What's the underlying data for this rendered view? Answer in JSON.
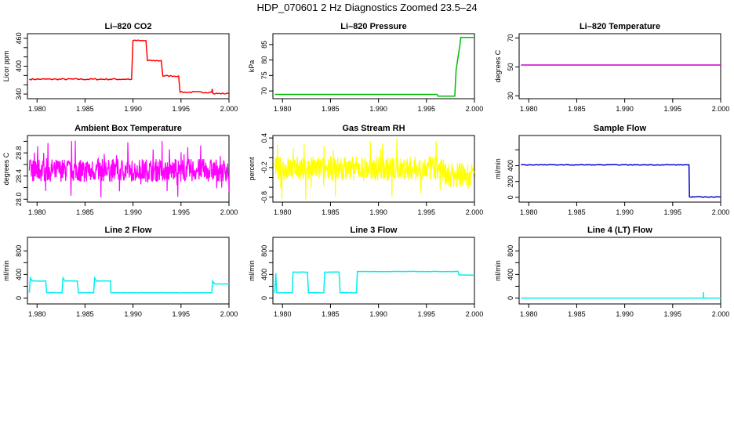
{
  "page": {
    "title": "HDP_070601  2 Hz Diagnostics Zoomed 23.5–24"
  },
  "chart_data": [
    {
      "type": "line",
      "title": "Li–820 CO2",
      "ylabel": "Licor ppm",
      "xlim": [
        1.979,
        2.0
      ],
      "ylim": [
        330,
        470
      ],
      "xticks": [
        1.98,
        1.985,
        1.99,
        1.995,
        2.0
      ],
      "xticklabels": [
        "1.980",
        "1.985",
        "1.990",
        "1.995",
        "2.000"
      ],
      "yticks": [
        340,
        360,
        380,
        400,
        420,
        440,
        460
      ],
      "yticklabels": [
        "340",
        "",
        "",
        "400",
        "",
        "",
        "460"
      ],
      "color": "#ff0000",
      "noise": 1.5,
      "series": [
        {
          "x": [
            1.9792,
            1.98985,
            1.99,
            1.99135,
            1.9915,
            1.99295,
            1.9931,
            1.99475,
            1.9949,
            1.9982,
            1.99825,
            1.9983,
            1.99835,
            2.0
          ],
          "y": [
            372,
            372,
            455,
            455,
            412,
            412,
            379,
            379,
            344,
            344,
            351,
            344,
            341,
            341
          ]
        }
      ]
    },
    {
      "type": "line",
      "title": "Li–820 Pressure",
      "ylabel": "kPa",
      "xlim": [
        1.979,
        2.0
      ],
      "ylim": [
        67.5,
        88.5
      ],
      "xticks": [
        1.98,
        1.985,
        1.99,
        1.995,
        2.0
      ],
      "xticklabels": [
        "1.980",
        "1.985",
        "1.990",
        "1.995",
        "2.000"
      ],
      "yticks": [
        70,
        75,
        80,
        85
      ],
      "yticklabels": [
        "70",
        "75",
        "80",
        "85"
      ],
      "color": "#00bb00",
      "noise": 0,
      "series": [
        {
          "x": [
            1.9792,
            1.9961,
            1.9962,
            1.99795,
            1.9981,
            1.9985,
            1.99858,
            2.0
          ],
          "y": [
            68.9,
            68.9,
            68.3,
            68.3,
            77,
            85,
            87.3,
            87.3
          ]
        }
      ]
    },
    {
      "type": "line",
      "title": "Li–820 Temperature",
      "ylabel": "degrees C",
      "xlim": [
        1.979,
        2.0
      ],
      "ylim": [
        28,
        73
      ],
      "xticks": [
        1.98,
        1.985,
        1.99,
        1.995,
        2.0
      ],
      "xticklabels": [
        "1.980",
        "1.985",
        "1.990",
        "1.995",
        "2.000"
      ],
      "yticks": [
        30,
        50,
        70
      ],
      "yticklabels": [
        "30",
        "50",
        "70"
      ],
      "color": "#cc00cc",
      "noise": 0,
      "series": [
        {
          "x": [
            1.9792,
            2.0
          ],
          "y": [
            51.3,
            51.3
          ]
        }
      ]
    },
    {
      "type": "line",
      "title": "Ambient Box Temperature",
      "ylabel": "degrees C",
      "xlim": [
        1.979,
        2.0
      ],
      "ylim": [
        27.95,
        29.1
      ],
      "xticks": [
        1.98,
        1.985,
        1.99,
        1.995,
        2.0
      ],
      "xticklabels": [
        "1.980",
        "1.985",
        "1.990",
        "1.995",
        "2.000"
      ],
      "yticks": [
        28.0,
        28.2,
        28.4,
        28.6,
        28.8,
        29.0
      ],
      "yticklabels": [
        "28.0",
        "",
        "28.4",
        "",
        "28.8",
        ""
      ],
      "color": "#ff00ff",
      "noise": 0,
      "series": [
        {
          "x": [
            1.9792,
            2.0
          ],
          "y": [
            28.5,
            28.5
          ]
        }
      ],
      "band": {
        "center": 28.5,
        "half": 0.2,
        "spike_min": 28.0,
        "spike_max": 29.05
      }
    },
    {
      "type": "line",
      "title": "Gas Stream RH",
      "ylabel": "percent",
      "xlim": [
        1.979,
        2.0
      ],
      "ylim": [
        -0.9,
        0.45
      ],
      "xticks": [
        1.98,
        1.985,
        1.99,
        1.995,
        2.0
      ],
      "xticklabels": [
        "1.980",
        "1.985",
        "1.990",
        "1.995",
        "2.000"
      ],
      "yticks": [
        -0.8,
        -0.6,
        -0.4,
        -0.2,
        0.0,
        0.2,
        0.4
      ],
      "yticklabels": [
        "-0.8",
        "",
        "",
        "-0.2",
        "",
        "",
        "0.4"
      ],
      "color": "#ffff00",
      "noise": 0,
      "series": [
        {
          "x": [
            1.9792,
            1.9968,
            1.9969,
            2.0
          ],
          "y": [
            -0.22,
            -0.22,
            -0.35,
            -0.35
          ]
        }
      ],
      "band": {
        "center": -0.22,
        "half": 0.25,
        "spike_min": -0.85,
        "spike_max": 0.4
      }
    },
    {
      "type": "line",
      "title": "Sample Flow",
      "ylabel": "ml/min",
      "xlim": [
        1.979,
        2.0
      ],
      "ylim": [
        -60,
        780
      ],
      "xticks": [
        1.98,
        1.985,
        1.99,
        1.995,
        2.0
      ],
      "xticklabels": [
        "1.980",
        "1.985",
        "1.990",
        "1.995",
        "2.000"
      ],
      "yticks": [
        0,
        200,
        400,
        600
      ],
      "yticklabels": [
        "0",
        "200",
        "400",
        ""
      ],
      "color": "#0000cc",
      "noise": 4,
      "series": [
        {
          "x": [
            1.9792,
            1.9967,
            1.99675,
            2.0
          ],
          "y": [
            410,
            410,
            5,
            5
          ]
        }
      ]
    },
    {
      "type": "line",
      "title": "Line 2 Flow",
      "ylabel": "ml/min",
      "xlim": [
        1.979,
        2.0
      ],
      "ylim": [
        -100,
        1030
      ],
      "xticks": [
        1.98,
        1.985,
        1.99,
        1.995,
        2.0
      ],
      "xticklabels": [
        "1.980",
        "1.985",
        "1.990",
        "1.995",
        "2.000"
      ],
      "yticks": [
        0,
        200,
        400,
        600,
        800
      ],
      "yticklabels": [
        "0",
        "",
        "400",
        "",
        "800"
      ],
      "color": "#00eeee",
      "noise": 3,
      "series": [
        {
          "x": [
            1.9792,
            1.9793,
            1.9795,
            1.9809,
            1.981,
            1.9826,
            1.9827,
            1.9829,
            1.9842,
            1.9843,
            1.9859,
            1.986,
            1.9862,
            1.98765,
            1.9877,
            1.9982,
            1.9983,
            1.9985,
            2.0
          ],
          "y": [
            90,
            340,
            290,
            290,
            90,
            90,
            340,
            290,
            290,
            90,
            90,
            340,
            290,
            290,
            90,
            90,
            290,
            240,
            240
          ]
        }
      ]
    },
    {
      "type": "line",
      "title": "Line 3 Flow",
      "ylabel": "ml/min",
      "xlim": [
        1.979,
        2.0
      ],
      "ylim": [
        -100,
        1030
      ],
      "xticks": [
        1.98,
        1.985,
        1.99,
        1.995,
        2.0
      ],
      "xticklabels": [
        "1.980",
        "1.985",
        "1.990",
        "1.995",
        "2.000"
      ],
      "yticks": [
        0,
        200,
        400,
        600,
        800
      ],
      "yticklabels": [
        "0",
        "",
        "400",
        "",
        "800"
      ],
      "color": "#00eeee",
      "noise": 3,
      "series": [
        {
          "x": [
            1.9792,
            1.9793,
            1.9794,
            1.981,
            1.9811,
            1.9812,
            1.9826,
            1.9827,
            1.9828,
            1.9843,
            1.9844,
            1.9845,
            1.9859,
            1.986,
            1.9861,
            1.9877,
            1.9878,
            1.9879,
            1.9983,
            1.9984,
            2.0
          ],
          "y": [
            90,
            420,
            90,
            90,
            440,
            440,
            440,
            90,
            90,
            90,
            440,
            440,
            440,
            90,
            90,
            90,
            450,
            450,
            450,
            390,
            390
          ]
        }
      ]
    },
    {
      "type": "line",
      "title": "Line 4 (LT) Flow",
      "ylabel": "ml/min",
      "xlim": [
        1.979,
        2.0
      ],
      "ylim": [
        -100,
        1030
      ],
      "xticks": [
        1.98,
        1.985,
        1.99,
        1.995,
        2.0
      ],
      "xticklabels": [
        "1.980",
        "1.985",
        "1.990",
        "1.995",
        "2.000"
      ],
      "yticks": [
        0,
        200,
        400,
        600,
        800
      ],
      "yticklabels": [
        "0",
        "",
        "400",
        "",
        "800"
      ],
      "color": "#00eeee",
      "noise": 0,
      "series": [
        {
          "x": [
            1.9792,
            1.9982,
            1.9982,
            1.99823,
            1.99826,
            2.0
          ],
          "y": [
            0,
            0,
            100,
            20,
            0,
            0
          ]
        }
      ]
    }
  ]
}
